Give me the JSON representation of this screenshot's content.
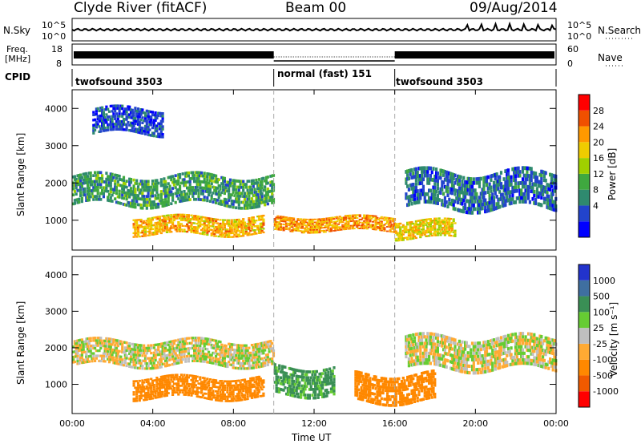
{
  "header": {
    "station": "Clyde River (fitACF)",
    "beam": "Beam 00",
    "date": "09/Aug/2014"
  },
  "top_panels": {
    "nsky_label": "N.Sky",
    "nsky_ticks": [
      "10^5",
      "10^0"
    ],
    "nsearch_label": "N.Search",
    "nsearch_ticks": [
      "10^5",
      "10^0"
    ],
    "freq_label": "Freq.",
    "freq_unit": "[MHz]",
    "freq_ticks": [
      "18",
      "8"
    ],
    "nave_label": "Nave",
    "nave_ticks": [
      "60",
      "0"
    ],
    "cpid_label": "CPID",
    "cpid_segments": [
      {
        "label": "twofsound 3503",
        "start_h": 0,
        "end_h": 10
      },
      {
        "label": "normal (fast) 151",
        "start_h": 10,
        "end_h": 16
      },
      {
        "label": "twofsound 3503",
        "start_h": 16,
        "end_h": 24
      }
    ]
  },
  "chart_data": [
    {
      "type": "heatmap",
      "title": "",
      "xlabel": "",
      "ylabel": "Slant Range [km]",
      "ylim": [
        200,
        4500
      ],
      "y_ticks": [
        1000,
        2000,
        3000,
        4000
      ],
      "colorbar_label": "Power [dB]",
      "colorbar_ticks": [
        28,
        24,
        20,
        16,
        12,
        8,
        4
      ],
      "colors": [
        "#ff0000",
        "#f05000",
        "#ff9900",
        "#f0cc00",
        "#a0d000",
        "#3fa83f",
        "#2f8a6f",
        "#2244cc",
        "#0000ff"
      ],
      "echo_bands_km": [
        {
          "start_h": 0.0,
          "end_h": 10.0,
          "lo": 1400,
          "hi": 2200,
          "value_db": 12
        },
        {
          "start_h": 3.0,
          "end_h": 9.5,
          "lo": 600,
          "hi": 1100,
          "value_db": 24
        },
        {
          "start_h": 10.0,
          "end_h": 16.0,
          "lo": 700,
          "hi": 1100,
          "value_db": 26
        },
        {
          "start_h": 16.0,
          "end_h": 19.0,
          "lo": 500,
          "hi": 1000,
          "value_db": 22
        },
        {
          "start_h": 16.5,
          "end_h": 24.0,
          "lo": 1300,
          "hi": 2300,
          "value_db": 8
        },
        {
          "start_h": 1.0,
          "end_h": 4.5,
          "lo": 3300,
          "hi": 4000,
          "value_db": 6
        }
      ]
    },
    {
      "type": "heatmap",
      "title": "",
      "xlabel": "Time UT",
      "ylabel": "Slant Range [km]",
      "ylim": [
        200,
        4500
      ],
      "y_ticks": [
        1000,
        2000,
        3000,
        4000
      ],
      "x_ticks": [
        "00:00",
        "04:00",
        "08:00",
        "12:00",
        "16:00",
        "20:00",
        "00:00"
      ],
      "colorbar_label": "Velocity [m s⁻¹]",
      "colorbar_ticks": [
        1000,
        500,
        100,
        25,
        -25,
        -100,
        -500,
        -1000
      ],
      "colors": [
        "#2233cc",
        "#3f6fa0",
        "#3a8f55",
        "#66cc33",
        "#bfbfbf",
        "#ffaa33",
        "#ff8800",
        "#f05a00",
        "#ff0000"
      ],
      "echo_bands_km": [
        {
          "start_h": 0.0,
          "end_h": 10.0,
          "lo": 1500,
          "hi": 2200,
          "value_ms": 0
        },
        {
          "start_h": 3.0,
          "end_h": 9.5,
          "lo": 600,
          "hi": 1200,
          "value_ms": -300
        },
        {
          "start_h": 10.0,
          "end_h": 13.0,
          "lo": 700,
          "hi": 1500,
          "value_ms": 150
        },
        {
          "start_h": 14.0,
          "end_h": 18.0,
          "lo": 500,
          "hi": 1300,
          "value_ms": -300
        },
        {
          "start_h": 16.5,
          "end_h": 24.0,
          "lo": 1400,
          "hi": 2300,
          "value_ms": 0
        }
      ]
    }
  ]
}
